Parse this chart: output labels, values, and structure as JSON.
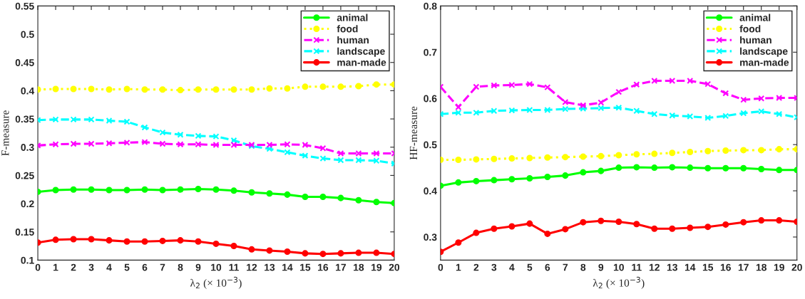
{
  "chart_data": [
    {
      "type": "line",
      "xlabel": "λ$_{2}$ (× 10$^{−3}$)",
      "ylabel": "F-measure",
      "x": [
        0,
        1,
        2,
        3,
        4,
        5,
        6,
        7,
        8,
        9,
        10,
        11,
        12,
        13,
        14,
        15,
        16,
        17,
        18,
        19,
        20
      ],
      "xlim": [
        0,
        20
      ],
      "xticks": [
        0,
        1,
        2,
        3,
        4,
        5,
        6,
        7,
        8,
        9,
        10,
        11,
        12,
        13,
        14,
        15,
        16,
        17,
        18,
        19,
        20
      ],
      "ylim": [
        0.1,
        0.55
      ],
      "yticks": [
        0.1,
        0.15,
        0.2,
        0.25,
        0.3,
        0.35,
        0.4,
        0.45,
        0.5,
        0.55
      ],
      "grid": false,
      "legend": "top right",
      "series": [
        {
          "name": "animal",
          "color": "#00ff00",
          "marker": "circle",
          "line_style": "solid",
          "values": [
            0.221,
            0.224,
            0.225,
            0.225,
            0.224,
            0.224,
            0.225,
            0.224,
            0.225,
            0.226,
            0.225,
            0.223,
            0.22,
            0.218,
            0.216,
            0.212,
            0.212,
            0.21,
            0.206,
            0.203,
            0.201
          ]
        },
        {
          "name": "food",
          "color": "#ffff00",
          "marker": "circle",
          "line_style": "dotted",
          "values": [
            0.402,
            0.403,
            0.403,
            0.403,
            0.402,
            0.403,
            0.402,
            0.402,
            0.401,
            0.402,
            0.402,
            0.402,
            0.402,
            0.404,
            0.404,
            0.407,
            0.407,
            0.407,
            0.408,
            0.411,
            0.411
          ]
        },
        {
          "name": "human",
          "color": "#ff00ff",
          "marker": "cross",
          "line_style": "dashed",
          "values": [
            0.303,
            0.305,
            0.306,
            0.306,
            0.307,
            0.308,
            0.309,
            0.306,
            0.305,
            0.305,
            0.304,
            0.304,
            0.304,
            0.304,
            0.305,
            0.304,
            0.298,
            0.289,
            0.289,
            0.289,
            0.289
          ]
        },
        {
          "name": "landscape",
          "color": "#00ffff",
          "marker": "cross",
          "line_style": "dashed",
          "values": [
            0.348,
            0.349,
            0.349,
            0.349,
            0.347,
            0.345,
            0.335,
            0.326,
            0.322,
            0.32,
            0.319,
            0.312,
            0.302,
            0.297,
            0.291,
            0.285,
            0.28,
            0.277,
            0.277,
            0.276,
            0.271
          ]
        },
        {
          "name": "man-made",
          "color": "#ff0000",
          "marker": "circle",
          "line_style": "solid",
          "values": [
            0.131,
            0.136,
            0.137,
            0.137,
            0.135,
            0.133,
            0.133,
            0.134,
            0.135,
            0.133,
            0.129,
            0.125,
            0.119,
            0.117,
            0.115,
            0.112,
            0.111,
            0.112,
            0.113,
            0.113,
            0.111
          ]
        }
      ]
    },
    {
      "type": "line",
      "xlabel": "λ$_{2}$ (× 10$^{−3}$)",
      "ylabel": "HF-measure",
      "x": [
        0,
        1,
        2,
        3,
        4,
        5,
        6,
        7,
        8,
        9,
        10,
        11,
        12,
        13,
        14,
        15,
        16,
        17,
        18,
        19,
        20
      ],
      "xlim": [
        0,
        20
      ],
      "xticks": [
        0,
        1,
        2,
        3,
        4,
        5,
        6,
        7,
        8,
        9,
        10,
        11,
        12,
        13,
        14,
        15,
        16,
        17,
        18,
        19,
        20
      ],
      "ylim": [
        0.25,
        0.8
      ],
      "yticks": [
        0.3,
        0.4,
        0.5,
        0.6,
        0.7,
        0.8
      ],
      "grid": false,
      "legend": "top right",
      "series": [
        {
          "name": "animal",
          "color": "#00ff00",
          "marker": "circle",
          "line_style": "solid",
          "values": [
            0.411,
            0.418,
            0.421,
            0.423,
            0.425,
            0.427,
            0.43,
            0.433,
            0.44,
            0.443,
            0.45,
            0.451,
            0.45,
            0.451,
            0.45,
            0.449,
            0.449,
            0.449,
            0.447,
            0.445,
            0.445
          ]
        },
        {
          "name": "food",
          "color": "#ffff00",
          "marker": "circle",
          "line_style": "dotted",
          "values": [
            0.467,
            0.467,
            0.468,
            0.469,
            0.47,
            0.471,
            0.472,
            0.473,
            0.474,
            0.475,
            0.477,
            0.479,
            0.48,
            0.482,
            0.484,
            0.486,
            0.487,
            0.488,
            0.488,
            0.49,
            0.49
          ]
        },
        {
          "name": "human",
          "color": "#ff00ff",
          "marker": "cross",
          "line_style": "dashed",
          "values": [
            0.625,
            0.581,
            0.625,
            0.628,
            0.629,
            0.631,
            0.624,
            0.592,
            0.585,
            0.591,
            0.614,
            0.63,
            0.638,
            0.638,
            0.638,
            0.631,
            0.611,
            0.597,
            0.6,
            0.601,
            0.601
          ]
        },
        {
          "name": "landscape",
          "color": "#00ffff",
          "marker": "cross",
          "line_style": "dashed",
          "values": [
            0.566,
            0.569,
            0.569,
            0.573,
            0.574,
            0.575,
            0.575,
            0.577,
            0.578,
            0.579,
            0.58,
            0.573,
            0.566,
            0.563,
            0.561,
            0.558,
            0.562,
            0.568,
            0.572,
            0.566,
            0.559
          ]
        },
        {
          "name": "man-made",
          "color": "#ff0000",
          "marker": "circle",
          "line_style": "solid",
          "values": [
            0.268,
            0.288,
            0.309,
            0.318,
            0.323,
            0.329,
            0.307,
            0.317,
            0.332,
            0.335,
            0.333,
            0.328,
            0.318,
            0.318,
            0.32,
            0.322,
            0.327,
            0.332,
            0.336,
            0.336,
            0.333
          ]
        }
      ]
    }
  ]
}
